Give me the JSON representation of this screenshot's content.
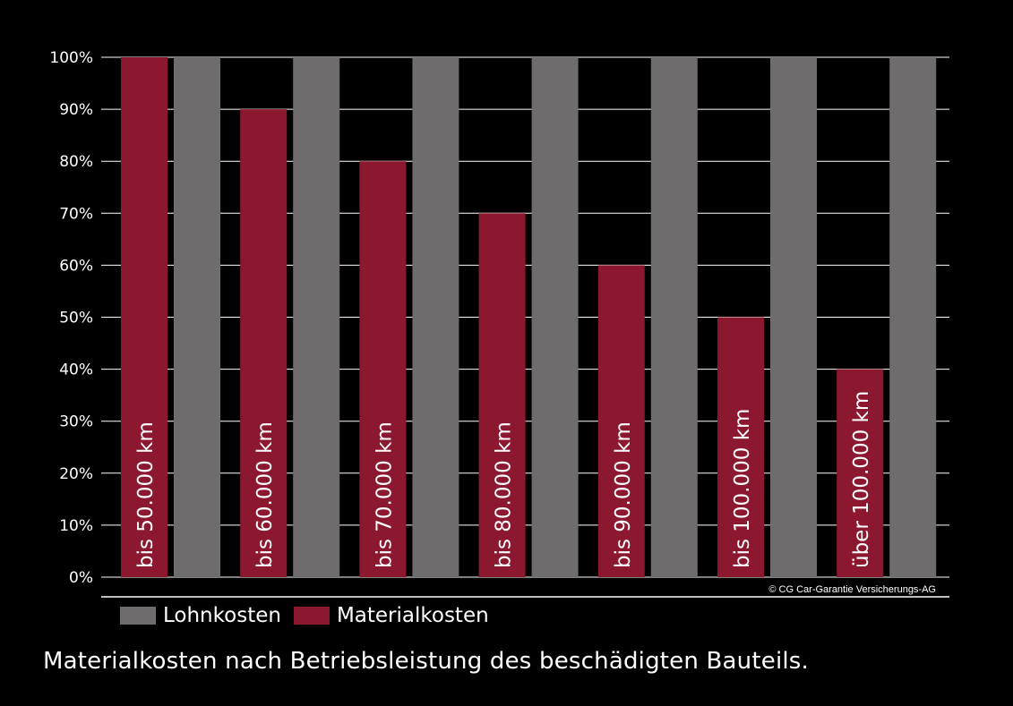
{
  "chart_data": {
    "type": "bar",
    "categories": [
      "bis 50.000 km",
      "bis 60.000 km",
      "bis 70.000 km",
      "bis 80.000 km",
      "bis 90.000 km",
      "bis 100.000 km",
      "über 100.000 km"
    ],
    "series": [
      {
        "name": "Materialkosten",
        "color": "#8c1830",
        "values": [
          100,
          90,
          80,
          70,
          60,
          50,
          40
        ]
      },
      {
        "name": "Lohnkosten",
        "color": "#6e6c6c",
        "values": [
          100,
          100,
          100,
          100,
          100,
          100,
          100
        ]
      }
    ],
    "ylim": [
      0,
      100
    ],
    "yticks": [
      "0%",
      "10%",
      "20%",
      "30%",
      "40%",
      "50%",
      "60%",
      "70%",
      "80%",
      "90%",
      "100%"
    ],
    "grid": true,
    "legend_position": "bottom-left",
    "copyright": "© CG Car-Garantie Versicherungs-AG"
  },
  "legend": {
    "lohn_label": "Lohnkosten",
    "material_label": "Materialkosten",
    "lohn_color": "#6e6c6c",
    "material_color": "#8c1830"
  },
  "caption": "Materialkosten nach Betriebsleistung des beschädigten Bauteils."
}
